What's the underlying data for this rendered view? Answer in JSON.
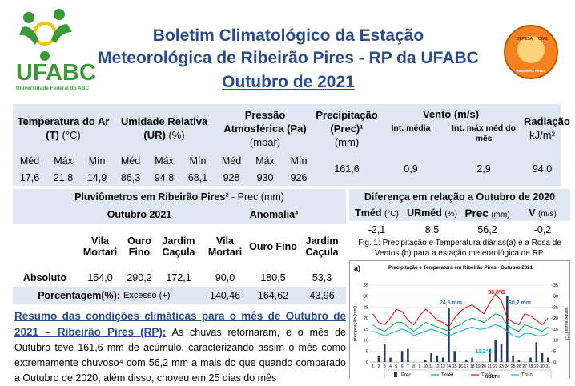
{
  "header": {
    "title_lines": [
      "Boletim Climatológico da Estação",
      "Meteorológica de Ribeirão Pires - RP da UFABC",
      "Outubro de 2021"
    ],
    "logo_text": "UFABC",
    "logo_subtitle": "Universidade Federal do ABC",
    "badge": [
      "DEFESA",
      "CIVIL",
      "RIBEIRÃO PIRES"
    ]
  },
  "summary_table": {
    "temperature": {
      "name": "Temperatura do Ar (T)",
      "unit": "(°C)",
      "sub": [
        "Méd",
        "Máx",
        "Mín"
      ],
      "values": [
        "17,6",
        "21,8",
        "14,9"
      ]
    },
    "humidity": {
      "name": "Umidade Relativa (UR)",
      "unit": "(%)",
      "sub": [
        "Méd",
        "Máx",
        "Mín"
      ],
      "values": [
        "86,3",
        "94,8",
        "68,1"
      ]
    },
    "pressure": {
      "name": "Pressão Atmosférica (Pa)",
      "unit": "(mbar)",
      "sub": [
        "Méd",
        "Máx",
        "Mín"
      ],
      "values": [
        "928",
        "930",
        "926"
      ]
    },
    "precipitation": {
      "name": "Precipitação (Prec)¹",
      "unit": "(mm)",
      "value": "161,6"
    },
    "wind": {
      "name": "Vento (m/s)",
      "sub": [
        "Int. média",
        "Int. máx méd do mês"
      ],
      "values": [
        "0,9",
        "2,9"
      ]
    },
    "radiation": {
      "name": "Radiação",
      "unit": "kJ/m²",
      "value": "94,0"
    }
  },
  "rain_gauges": {
    "title": "Pluviômetros em Ribeirão Pires²",
    "title_unit": "- Prec (mm)",
    "groups": [
      "Outubro 2021",
      "Anomalia³"
    ],
    "stations": [
      "Vila Mortari",
      "Ouro Fino",
      "Jardim Caçula",
      "Vila Mortari",
      "Ouro Fino",
      "Jardim Caçula"
    ],
    "absolute": {
      "label": "Absoluto",
      "values": [
        "154,0",
        "290,2",
        "172,1",
        "90,0",
        "180,5",
        "53,3"
      ]
    },
    "percent": {
      "label": "Porcentagem(%):",
      "note": "Excesso (+)",
      "values": [
        "140,46",
        "164,62",
        "43,96"
      ]
    }
  },
  "difference": {
    "title": "Diferença em relação a Outubro de 2020",
    "headers": [
      {
        "name": "Tméd",
        "unit": "(°C)"
      },
      {
        "name": "URméd",
        "unit": "(%)"
      },
      {
        "name": "Prec",
        "unit": "(mm)"
      },
      {
        "name": "V",
        "unit": "(m/s)"
      }
    ],
    "values": [
      "-2,1",
      "8,5",
      "56,2",
      "-0,2"
    ]
  },
  "caption": "Fig. 1: Precipitação e Temperatura diárias(a) e a Rosa de Ventos (b) para a estação meteorológica de RP.",
  "chart_data": {
    "type": "combo",
    "panel_label": "a)",
    "title": "Precipitação e Temperatura em Ribeirão Pires - Outubro 2021",
    "y_label": "precipitação (mm)",
    "y2_label": "temperatura (°C)",
    "x": [
      1,
      2,
      3,
      4,
      5,
      6,
      7,
      8,
      9,
      10,
      11,
      12,
      13,
      14,
      15,
      16,
      17,
      18,
      19,
      20,
      21,
      22,
      23,
      24,
      25,
      26,
      27,
      28,
      29,
      30,
      31
    ],
    "xlim": [
      0.5,
      31.5
    ],
    "ylim": [
      0,
      35
    ],
    "yticks": [
      0,
      5,
      10,
      15,
      20,
      25,
      30,
      35
    ],
    "y2lim": [
      0,
      35
    ],
    "y2ticks": [
      0,
      5,
      10,
      15,
      20,
      25,
      30,
      35
    ],
    "series": [
      {
        "name": "Prec",
        "kind": "bar",
        "color": "#1f3864",
        "values": [
          0,
          3,
          8,
          2,
          0,
          5,
          6,
          0,
          0,
          1,
          4,
          3,
          2,
          24.6,
          5,
          0,
          1,
          2,
          0,
          0,
          6,
          10,
          8,
          30.2,
          3,
          1,
          0,
          2,
          9,
          4,
          2
        ]
      },
      {
        "name": "Tméd",
        "kind": "line",
        "axis": "y2",
        "color": "#00b050",
        "values": [
          17,
          15,
          14,
          16,
          18,
          18,
          16,
          14,
          16,
          18,
          17,
          16,
          15,
          14,
          16,
          17,
          19,
          20,
          19,
          18,
          20,
          22,
          21,
          17,
          15,
          14,
          17,
          16,
          15,
          14,
          16
        ]
      },
      {
        "name": "Tmáx",
        "kind": "line",
        "axis": "y2",
        "color": "#ff0000",
        "values": [
          22,
          18,
          17,
          20,
          24,
          23,
          19,
          17,
          21,
          24,
          22,
          19,
          18,
          16,
          20,
          23,
          25,
          26,
          24,
          22,
          27,
          30.8,
          28,
          20,
          18,
          17,
          22,
          21,
          19,
          17,
          20
        ]
      },
      {
        "name": "Tmín",
        "kind": "line",
        "axis": "y2",
        "color": "#00b0f0",
        "values": [
          14,
          13,
          12,
          13,
          14,
          15,
          14,
          12,
          13,
          14,
          15,
          14,
          13,
          12,
          13,
          14,
          15,
          16,
          15,
          15,
          16,
          17,
          16,
          14,
          12,
          11.2,
          13,
          13,
          12,
          12,
          13
        ]
      }
    ],
    "annotations": [
      "30,8°C",
      "24,6 mm",
      "30,2 mm",
      "11,2°C"
    ]
  },
  "wind_rose": {
    "label": "NORTH"
  },
  "summary": {
    "heading": "Resumo das condições climáticas para o mês de Outubro de 2021 – Ribeirão Pires (RP):",
    "text": "As chuvas retornaram, e o mês de Outubro teve 161,6 mm de acúmulo, caracterizando assim o mês como extremamente chuvoso⁴ com 56,2 mm a mais do que quando comparado a Outubro de 2020, além disso, choveu em 25 dias do mês"
  }
}
